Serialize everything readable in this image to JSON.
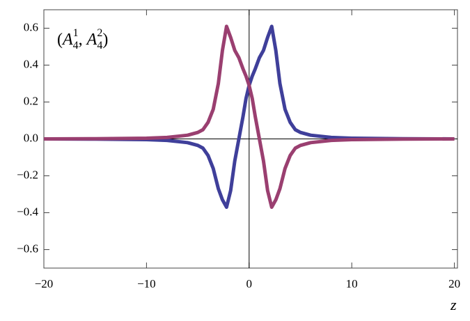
{
  "chart_data": {
    "type": "line",
    "annotation": [
      "(",
      "A",
      "4",
      "1",
      ", ",
      "A",
      "4",
      "2",
      ")"
    ],
    "x_label": "z",
    "x": [
      -20,
      -15,
      -10,
      -8,
      -6,
      -5,
      -4.5,
      -4,
      -3.5,
      -3,
      -2.6,
      -2.2,
      -1.8,
      -1.4,
      -1,
      -0.6,
      -0.3,
      0,
      0.3,
      0.6,
      1,
      1.4,
      1.8,
      2.2,
      2.6,
      3,
      3.5,
      4,
      4.5,
      5,
      6,
      8,
      10,
      15,
      20
    ],
    "series": [
      {
        "color": "#3f3f9a",
        "values": [
          0,
          -0.001,
          -0.004,
          -0.008,
          -0.02,
          -0.035,
          -0.05,
          -0.09,
          -0.16,
          -0.27,
          -0.33,
          -0.37,
          -0.28,
          -0.12,
          0.0,
          0.12,
          0.22,
          0.29,
          0.34,
          0.38,
          0.44,
          0.48,
          0.55,
          0.61,
          0.48,
          0.3,
          0.16,
          0.09,
          0.05,
          0.035,
          0.02,
          0.008,
          0.004,
          0.001,
          0
        ]
      },
      {
        "color": "#9a3f70",
        "values": [
          0,
          0.001,
          0.004,
          0.008,
          0.02,
          0.035,
          0.05,
          0.09,
          0.16,
          0.3,
          0.48,
          0.61,
          0.55,
          0.48,
          0.44,
          0.38,
          0.34,
          0.29,
          0.22,
          0.12,
          0.0,
          -0.12,
          -0.28,
          -0.37,
          -0.33,
          -0.27,
          -0.16,
          -0.09,
          -0.05,
          -0.035,
          -0.02,
          -0.008,
          -0.004,
          -0.001,
          0
        ]
      }
    ],
    "xlim": [
      -20,
      20.3
    ],
    "ylim": [
      -0.7,
      0.7
    ],
    "xticks": [
      {
        "value": -20,
        "label": "−20"
      },
      {
        "value": -10,
        "label": "−10"
      },
      0,
      10,
      20
    ],
    "yticks": [
      {
        "value": -0.6,
        "label": "−0.6"
      },
      {
        "value": -0.4,
        "label": "−0.4"
      },
      {
        "value": -0.2,
        "label": "−0.2"
      },
      {
        "value": 0,
        "label": "0.0"
      },
      0.2,
      0.4,
      0.6
    ]
  }
}
